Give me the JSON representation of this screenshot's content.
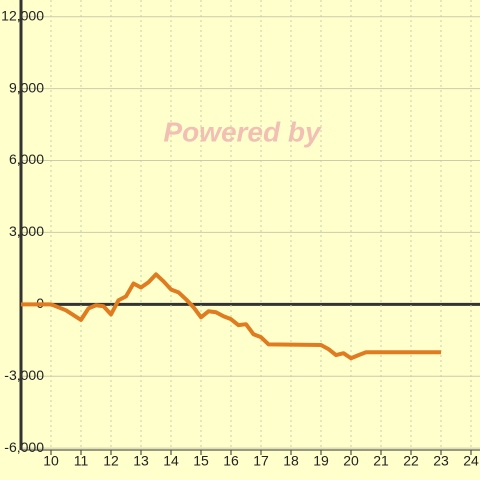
{
  "chart_data": {
    "type": "line",
    "watermark": "Powered by",
    "x": [
      9.0,
      10.0,
      10.5,
      11.0,
      11.25,
      11.5,
      11.75,
      12.0,
      12.25,
      12.5,
      12.75,
      13.0,
      13.25,
      13.5,
      13.75,
      14.0,
      14.25,
      14.5,
      14.75,
      15.0,
      15.25,
      15.5,
      15.75,
      16.0,
      16.25,
      16.5,
      16.75,
      17.0,
      17.25,
      19.0,
      19.25,
      19.5,
      19.75,
      20.0,
      20.25,
      20.5,
      23.0
    ],
    "series": [
      {
        "color": "#e07b20",
        "values": [
          0,
          0,
          -250,
          -650,
          -170,
          -40,
          -80,
          -420,
          170,
          330,
          870,
          700,
          920,
          1250,
          960,
          620,
          500,
          210,
          -120,
          -540,
          -290,
          -330,
          -500,
          -620,
          -870,
          -830,
          -1250,
          -1370,
          -1670,
          -1700,
          -1870,
          -2120,
          -2040,
          -2250,
          -2120,
          -2000,
          -2000
        ]
      }
    ],
    "xlim": [
      9.0,
      24.3
    ],
    "xticks": [
      10,
      11,
      12,
      13,
      14,
      15,
      16,
      17,
      18,
      19,
      20,
      21,
      22,
      23,
      24
    ],
    "ylim": [
      -6080,
      12700
    ],
    "yticks": [
      {
        "value": -6000,
        "label": "-6,000"
      },
      {
        "value": -3000,
        "label": "-3,000"
      },
      0,
      {
        "value": 3000,
        "label": "3,000"
      },
      {
        "value": 6000,
        "label": "6,000"
      },
      {
        "value": 9000,
        "label": "9,000"
      },
      {
        "value": 12000,
        "label": "12,000"
      }
    ],
    "grid": true
  }
}
